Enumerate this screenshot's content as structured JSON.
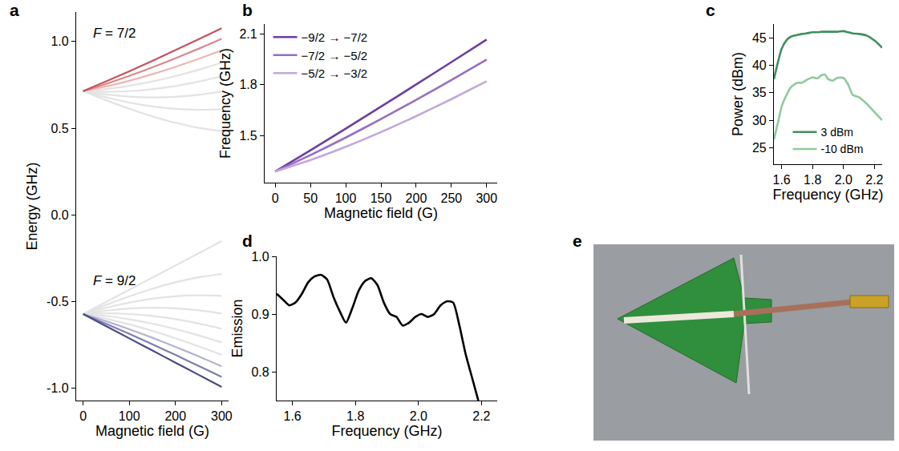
{
  "chart_data": [
    {
      "label": "a",
      "type": "line",
      "x": [
        0,
        50,
        100,
        150,
        200,
        250,
        300
      ],
      "xlabel": "Magnetic field (G)",
      "ylabel": "Energy (GHz)",
      "xlim": [
        -15,
        315
      ],
      "ylim": [
        -1.07,
        1.17
      ],
      "xticks": [
        0,
        100,
        200,
        300
      ],
      "yticks": [
        {
          "value": -1,
          "label": "-1.0"
        },
        -0.5,
        {
          "value": 0,
          "label": "0.0"
        },
        0.5,
        {
          "value": 1,
          "label": "1.0"
        }
      ],
      "annotations": [
        "F = 7/2",
        "F = 9/2"
      ],
      "series": [
        {
          "color": "#e3e3e3",
          "values": [
            0.7143,
            0.7258,
            0.7444,
            0.7696,
            0.8007,
            0.837,
            0.8777
          ]
        },
        {
          "color": "#e3e3e3",
          "values": [
            0.7143,
            0.7103,
            0.714,
            0.7252,
            0.7436,
            0.7685,
            0.7994
          ]
        },
        {
          "color": "#e3e3e3",
          "values": [
            0.7143,
            0.6945,
            0.6821,
            0.6775,
            0.6811,
            0.6926,
            0.7116
          ]
        },
        {
          "color": "#e3e3e3",
          "values": [
            0.7143,
            0.6782,
            0.6483,
            0.6258,
            0.6115,
            0.606,
            0.6097
          ]
        },
        {
          "color": "#e3e3e3",
          "values": [
            0.7143,
            0.6614,
            0.6125,
            0.5687,
            0.5314,
            0.5023,
            0.4832
          ]
        },
        {
          "color": "#e3e3e3",
          "values": [
            -0.5714,
            -0.5981,
            -0.6307,
            -0.6685,
            -0.7108,
            -0.7569,
            -0.8061
          ]
        },
        {
          "color": "#e3e3e3",
          "values": [
            -0.5714,
            -0.5829,
            -0.6016,
            -0.6268,
            -0.6578,
            -0.6941,
            -0.7348
          ]
        },
        {
          "color": "#e3e3e3",
          "values": [
            -0.5714,
            -0.5675,
            -0.5711,
            -0.5823,
            -0.6007,
            -0.6257,
            -0.6565
          ]
        },
        {
          "color": "#e3e3e3",
          "values": [
            -0.5714,
            -0.5516,
            -0.5392,
            -0.5347,
            -0.5382,
            -0.5497,
            -0.5687
          ]
        },
        {
          "color": "#e3e3e3",
          "values": [
            -0.5714,
            -0.5353,
            -0.5055,
            -0.4829,
            -0.4686,
            -0.4631,
            -0.4668
          ]
        },
        {
          "color": "#e3e3e3",
          "values": [
            -0.5714,
            -0.5186,
            -0.4697,
            -0.4258,
            -0.3885,
            -0.3595,
            -0.3404
          ]
        },
        {
          "color": "#e3e3e3",
          "values": [
            -0.5714,
            -0.5014,
            -0.4313,
            -0.3612,
            -0.2912,
            -0.2211,
            -0.1511
          ]
        },
        {
          "color": "#ebb6b8",
          "values": [
            0.7143,
            0.7409,
            0.7735,
            0.8114,
            0.8537,
            0.8998,
            0.949
          ]
        },
        {
          "color": "#d9878c",
          "values": [
            0.7143,
            0.7557,
            0.8015,
            0.8509,
            0.9033,
            0.9581,
            1.015
          ]
        },
        {
          "color": "#c4545c",
          "values": [
            0.7143,
            0.7702,
            0.8284,
            0.8885,
            0.9501,
            1.0129,
            1.0766
          ]
        },
        {
          "color": "#b4b3d2",
          "values": [
            -0.5714,
            -0.6128,
            -0.6586,
            -0.708,
            -0.7604,
            -0.8152,
            -0.8721
          ]
        },
        {
          "color": "#7f7eb0",
          "values": [
            -0.5714,
            -0.6273,
            -0.6856,
            -0.7457,
            -0.8072,
            -0.87,
            -0.9338
          ]
        },
        {
          "color": "#4b4a8a",
          "values": [
            -0.5714,
            -0.6415,
            -0.7116,
            -0.7816,
            -0.8517,
            -0.9217,
            -0.9918
          ]
        }
      ]
    },
    {
      "label": "b",
      "type": "line",
      "x": [
        0,
        50,
        100,
        150,
        200,
        250,
        300
      ],
      "xlabel": "Magnetic field (G)",
      "ylabel": "Frequency (GHz)",
      "xlim": [
        -15,
        315
      ],
      "ylim": [
        1.22,
        2.16
      ],
      "xticks": [
        0,
        50,
        100,
        150,
        200,
        250,
        300
      ],
      "yticks": [
        1.5,
        1.8,
        2.1
      ],
      "legend": "upper left",
      "series": [
        {
          "name": "−9/2 → −7/2",
          "color": "#6b3fa0",
          "values": [
            1.2857,
            1.4117,
            1.54,
            1.6701,
            1.8018,
            1.9346,
            2.0684
          ]
        },
        {
          "name": "−7/2 → −5/2",
          "color": "#9670c0",
          "values": [
            1.2857,
            1.383,
            1.4871,
            1.5966,
            1.7105,
            1.8281,
            1.9488
          ]
        },
        {
          "name": "−5/2 → −3/2",
          "color": "#c2a8dc",
          "values": [
            1.2857,
            1.3537,
            1.4321,
            1.5194,
            1.6141,
            1.715,
            1.8211
          ]
        }
      ]
    },
    {
      "label": "c",
      "type": "line",
      "x": [
        1.55,
        1.58,
        1.6,
        1.63,
        1.66,
        1.7,
        1.73,
        1.76,
        1.8,
        1.83,
        1.86,
        1.88,
        1.9,
        1.93,
        1.96,
        2.0,
        2.03,
        2.06,
        2.1,
        2.15,
        2.2,
        2.25
      ],
      "xlabel": "Frequency (GHz)",
      "ylabel": "Power (dBm)",
      "xlim": [
        1.55,
        2.25
      ],
      "ylim": [
        22,
        47.5
      ],
      "xticks": [
        1.6,
        1.8,
        {
          "value": 2,
          "label": "2.0"
        },
        2.2
      ],
      "yticks": [
        25,
        30,
        35,
        40,
        45
      ],
      "legend": "lower center",
      "series": [
        {
          "name": "3 dBm",
          "color": "#3f8f5f",
          "values": [
            37.5,
            41,
            43,
            44.5,
            45.2,
            45.5,
            45.7,
            45.8,
            46,
            46,
            46.1,
            46.1,
            46.1,
            46.1,
            46.1,
            46.2,
            46,
            45.8,
            45.7,
            45.4,
            44.5,
            43.2
          ]
        },
        {
          "name": "-10 dBm",
          "color": "#8fc9a0",
          "values": [
            26.5,
            30,
            32.5,
            34.5,
            36,
            36.8,
            36.8,
            37.3,
            37.8,
            37.6,
            38.2,
            38.3,
            37.5,
            37.2,
            37.7,
            37.7,
            36.5,
            34.6,
            34.2,
            33,
            31.5,
            30
          ]
        }
      ]
    },
    {
      "label": "d",
      "type": "line",
      "x": [
        1.55,
        1.57,
        1.59,
        1.61,
        1.63,
        1.65,
        1.67,
        1.69,
        1.71,
        1.73,
        1.75,
        1.77,
        1.79,
        1.81,
        1.83,
        1.85,
        1.87,
        1.89,
        1.91,
        1.93,
        1.95,
        1.97,
        1.99,
        2.01,
        2.03,
        2.05,
        2.07,
        2.09,
        2.11,
        2.13,
        2.15,
        2.17,
        2.19
      ],
      "xlabel": "Frequency (GHz)",
      "ylabel": "Emission",
      "xlim": [
        1.55,
        2.25
      ],
      "ylim": [
        0.75,
        1.0
      ],
      "xticks": [
        1.6,
        1.8,
        {
          "value": 2,
          "label": "2.0"
        },
        2.2
      ],
      "yticks": [
        0.8,
        0.9,
        {
          "value": 1,
          "label": "1.0"
        }
      ],
      "series": [
        {
          "color": "#000000",
          "values": [
            0.935,
            0.925,
            0.915,
            0.92,
            0.935,
            0.955,
            0.965,
            0.968,
            0.96,
            0.93,
            0.905,
            0.885,
            0.91,
            0.94,
            0.957,
            0.962,
            0.95,
            0.92,
            0.9,
            0.895,
            0.88,
            0.885,
            0.895,
            0.9,
            0.895,
            0.9,
            0.915,
            0.922,
            0.92,
            0.88,
            0.83,
            0.79,
            0.75
          ]
        }
      ]
    },
    {
      "label": "e",
      "type": "photo"
    }
  ]
}
